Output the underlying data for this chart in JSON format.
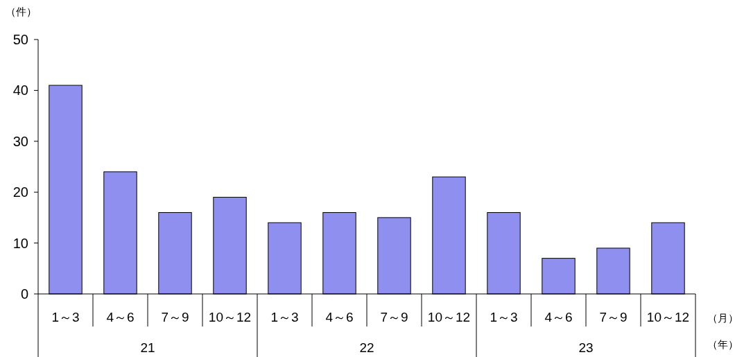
{
  "chart_data": {
    "type": "bar",
    "ylabel": "（件）",
    "xlabel": "（月）",
    "categories": [
      "1～3",
      "4～6",
      "7～9",
      "10～12",
      "1～3",
      "4～6",
      "7～9",
      "10～12",
      "1～3",
      "4～6",
      "7～9",
      "10～12"
    ],
    "values": [
      41,
      24,
      16,
      19,
      14,
      16,
      15,
      23,
      16,
      7,
      9,
      14
    ],
    "color": "#8f8ff0",
    "ylim": [
      0,
      50
    ],
    "yticks": [
      0,
      10,
      20,
      30,
      40,
      50
    ],
    "grid": false,
    "annotations": [
      "21",
      "22",
      "23",
      "（年）"
    ]
  }
}
